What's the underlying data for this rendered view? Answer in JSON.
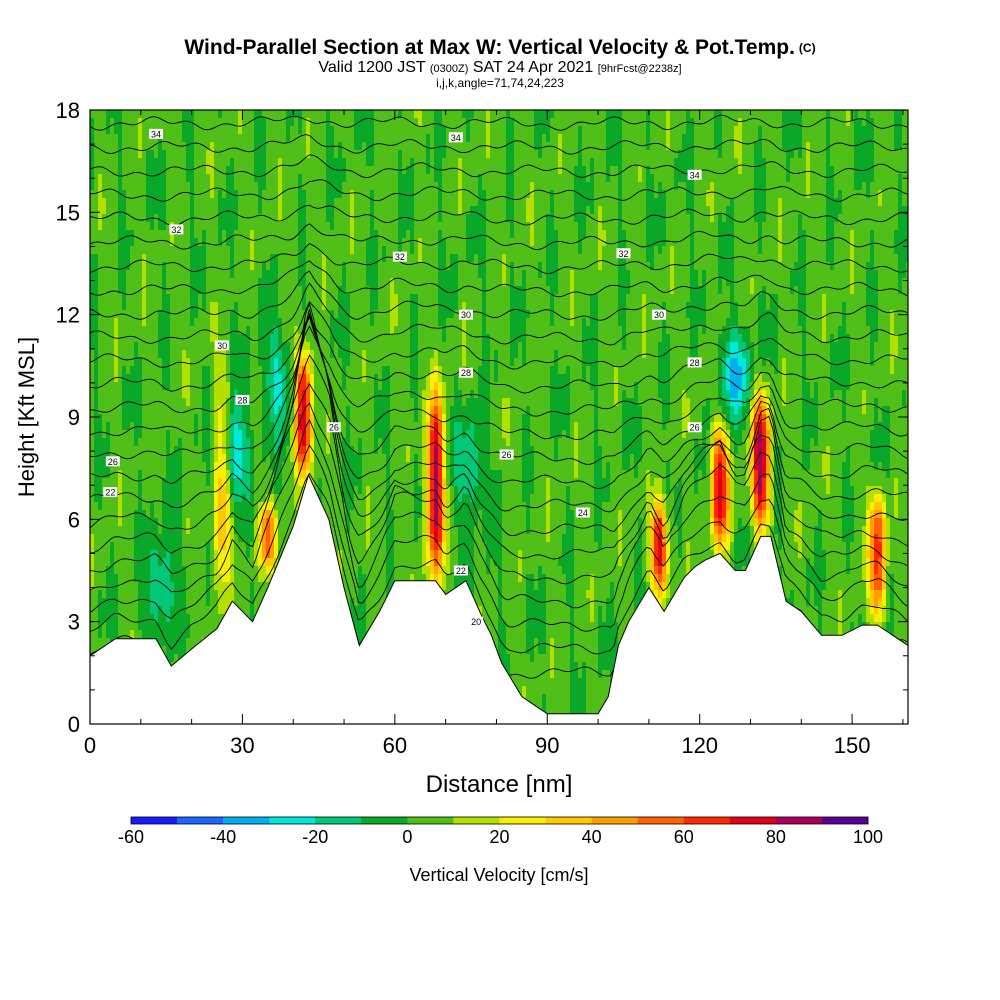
{
  "header": {
    "title": "Wind-Parallel Section at Max W: Vertical Velocity & Pot.Temp.",
    "copyright": "(C)",
    "valid_main": "Valid 1200 JST",
    "valid_utc": "(0300Z)",
    "valid_date": "SAT 24 Apr 2021",
    "forecast": "[9hrFcst@2238z]",
    "indices": "i,j,k,angle=71,74,24,223"
  },
  "chart_data": {
    "type": "heatmap",
    "title": "Wind-Parallel Section at Max W: Vertical Velocity & Pot.Temp.",
    "xlabel": "Distance [nm]",
    "ylabel": "Height [Kft MSL]",
    "xlim": [
      0,
      161
    ],
    "ylim": [
      0,
      18
    ],
    "x_ticks": [
      "0",
      "30",
      "60",
      "90",
      "120",
      "150"
    ],
    "y_ticks": [
      "0",
      "3",
      "6",
      "9",
      "12",
      "15",
      "18"
    ],
    "terrain_height_profile": {
      "x": [
        0,
        5,
        13,
        16,
        20,
        25,
        28,
        32,
        35,
        40,
        43,
        47,
        50,
        53,
        57,
        60,
        68,
        70,
        74,
        77,
        79,
        81,
        83,
        85,
        88,
        90,
        94,
        97,
        100,
        102,
        104,
        106,
        110,
        113,
        117,
        119,
        121,
        124,
        127,
        129,
        132,
        134,
        137,
        140,
        144,
        148,
        152,
        155,
        158,
        161
      ],
      "y": [
        2.0,
        2.5,
        2.5,
        1.7,
        2.2,
        2.8,
        3.6,
        3.0,
        4.0,
        5.8,
        7.3,
        6.0,
        4.0,
        2.3,
        3.3,
        4.2,
        4.2,
        3.8,
        4.2,
        3.2,
        2.6,
        1.8,
        1.3,
        0.8,
        0.5,
        0.3,
        0.3,
        0.3,
        0.3,
        0.8,
        2.3,
        3.0,
        4.0,
        3.3,
        4.3,
        4.6,
        4.8,
        5.0,
        4.5,
        4.5,
        5.5,
        5.5,
        3.6,
        3.3,
        2.6,
        2.6,
        2.9,
        2.9,
        2.6,
        2.3
      ]
    },
    "vertical_velocity_cores_cm_s": [
      {
        "x": 42,
        "z_bottom": 7.3,
        "z_top": 11.0,
        "max": 80
      },
      {
        "x": 68,
        "z_bottom": 4.2,
        "z_top": 9.8,
        "max": 80
      },
      {
        "x": 112,
        "z_bottom": 3.8,
        "z_top": 6.5,
        "max": 70
      },
      {
        "x": 124,
        "z_bottom": 5.0,
        "z_top": 8.8,
        "max": 70
      },
      {
        "x": 132,
        "z_bottom": 5.5,
        "z_top": 9.8,
        "max": 80
      },
      {
        "x": 155,
        "z_bottom": 3.0,
        "z_top": 6.8,
        "max": 60
      },
      {
        "x": 26,
        "z_bottom": 3.5,
        "z_top": 10.5,
        "max": 40
      },
      {
        "x": 35,
        "z_bottom": 4.5,
        "z_top": 6.5,
        "max": 50
      }
    ],
    "subsidence_zones_cm_s": [
      {
        "x": 28,
        "z_bottom": 6.5,
        "z_top": 9.5,
        "min": -30
      },
      {
        "x": 37,
        "z_bottom": 8.5,
        "z_top": 11.5,
        "min": -20
      },
      {
        "x": 14,
        "z_bottom": 2.5,
        "z_top": 5.5,
        "min": -20
      },
      {
        "x": 127,
        "z_bottom": 9.0,
        "z_top": 11.5,
        "min": -30
      },
      {
        "x": 75,
        "z_bottom": 6.0,
        "z_top": 9.0,
        "min": -20
      }
    ],
    "potential_temperature_contours": {
      "labels": [
        {
          "text": "34",
          "x": 13,
          "z": 17.3
        },
        {
          "text": "34",
          "x": 72,
          "z": 17.2
        },
        {
          "text": "34",
          "x": 119,
          "z": 16.1
        },
        {
          "text": "32",
          "x": 17,
          "z": 14.5
        },
        {
          "text": "32",
          "x": 61,
          "z": 13.7
        },
        {
          "text": "32",
          "x": 105,
          "z": 13.8
        },
        {
          "text": "30",
          "x": 26,
          "z": 11.1
        },
        {
          "text": "30",
          "x": 74,
          "z": 12.0
        },
        {
          "text": "30",
          "x": 112,
          "z": 12.0
        },
        {
          "text": "28",
          "x": 30,
          "z": 9.5
        },
        {
          "text": "28",
          "x": 74,
          "z": 10.3
        },
        {
          "text": "28",
          "x": 119,
          "z": 10.6
        },
        {
          "text": "26",
          "x": 4.5,
          "z": 7.7
        },
        {
          "text": "26",
          "x": 48,
          "z": 8.7
        },
        {
          "text": "26",
          "x": 82,
          "z": 7.9
        },
        {
          "text": "26",
          "x": 119,
          "z": 8.7
        },
        {
          "text": "24",
          "x": 97,
          "z": 6.2
        },
        {
          "text": "22",
          "x": 4,
          "z": 6.8
        },
        {
          "text": "22",
          "x": 73,
          "z": 4.5
        },
        {
          "text": "20",
          "x": 76,
          "z": 3.0
        }
      ]
    },
    "colorbar": {
      "label": "Vertical Velocity [cm/s]",
      "tick_labels": [
        "-60",
        "-40",
        "-20",
        "0",
        "20",
        "40",
        "60",
        "80",
        "100"
      ],
      "colors": [
        "#1a1aff",
        "#1a66ff",
        "#00b0f0",
        "#00e8d8",
        "#00c878",
        "#0aa828",
        "#50c018",
        "#b4e000",
        "#f8f000",
        "#ffc800",
        "#ffa000",
        "#ff6000",
        "#ff2800",
        "#e00018",
        "#a8005a",
        "#5a0090"
      ]
    }
  }
}
